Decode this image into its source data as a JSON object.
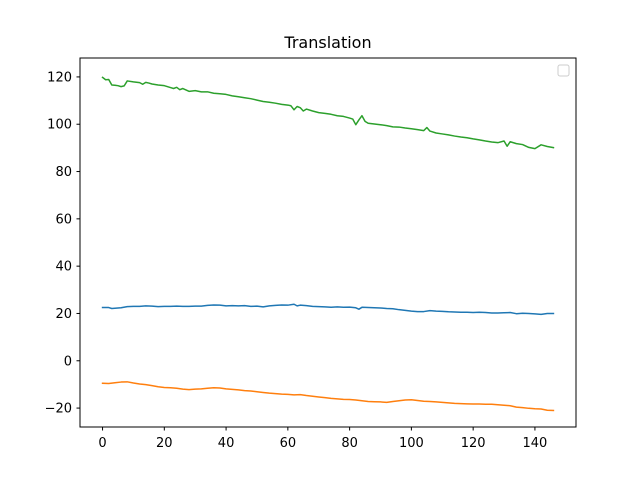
{
  "chart_data": {
    "type": "line",
    "title": "Translation",
    "xlabel": "",
    "ylabel": "",
    "xlim": [
      -7.3,
      153.3
    ],
    "ylim": [
      -28,
      128
    ],
    "xticks": [
      0,
      20,
      40,
      60,
      80,
      100,
      120,
      140
    ],
    "yticks": [
      -20,
      0,
      20,
      40,
      60,
      80,
      100,
      120
    ],
    "grid": false,
    "legend": {
      "position": "upper-right",
      "entries": []
    },
    "series": [
      {
        "color": "#1f77b4",
        "x": [
          0,
          2,
          3,
          6,
          8,
          10,
          12,
          14,
          16,
          18,
          20,
          22,
          24,
          26,
          28,
          30,
          32,
          34,
          36,
          38,
          40,
          42,
          44,
          46,
          48,
          50,
          52,
          54,
          56,
          58,
          60,
          62,
          63,
          64,
          66,
          68,
          70,
          72,
          74,
          76,
          78,
          80,
          82,
          83,
          84,
          86,
          88,
          90,
          92,
          94,
          96,
          98,
          100,
          102,
          104,
          106,
          108,
          110,
          112,
          114,
          116,
          118,
          120,
          122,
          124,
          126,
          128,
          130,
          132,
          134,
          136,
          138,
          140,
          142,
          144,
          146
        ],
        "y": [
          22.5,
          22.5,
          22.1,
          22.4,
          22.9,
          23.0,
          23.0,
          23.2,
          23.1,
          22.9,
          23.0,
          23.0,
          23.1,
          23.0,
          23.0,
          23.1,
          23.1,
          23.4,
          23.6,
          23.5,
          23.2,
          23.3,
          23.2,
          23.3,
          23.0,
          23.1,
          22.8,
          23.2,
          23.4,
          23.6,
          23.5,
          23.9,
          23.2,
          23.5,
          23.3,
          23.0,
          22.9,
          22.8,
          22.6,
          22.8,
          22.6,
          22.7,
          22.4,
          21.8,
          22.6,
          22.5,
          22.4,
          22.3,
          22.1,
          22.0,
          21.6,
          21.3,
          21.0,
          20.8,
          20.8,
          21.2,
          21.0,
          20.9,
          20.7,
          20.6,
          20.5,
          20.5,
          20.4,
          20.5,
          20.4,
          20.2,
          20.2,
          20.3,
          20.4,
          19.9,
          20.1,
          20.0,
          19.8,
          19.6,
          20.0,
          20.0
        ]
      },
      {
        "color": "#ff7f0e",
        "x": [
          0,
          2,
          4,
          6,
          8,
          10,
          12,
          14,
          16,
          18,
          20,
          22,
          24,
          26,
          28,
          30,
          32,
          34,
          36,
          38,
          40,
          42,
          44,
          46,
          48,
          50,
          52,
          54,
          56,
          58,
          60,
          62,
          64,
          66,
          68,
          70,
          72,
          74,
          76,
          78,
          80,
          82,
          84,
          86,
          88,
          90,
          92,
          94,
          96,
          98,
          100,
          102,
          104,
          106,
          108,
          110,
          112,
          114,
          116,
          118,
          120,
          122,
          124,
          126,
          128,
          130,
          132,
          134,
          136,
          138,
          140,
          142,
          144,
          146
        ],
        "y": [
          -9.5,
          -9.6,
          -9.3,
          -9.0,
          -8.9,
          -9.4,
          -9.8,
          -10.1,
          -10.5,
          -11.0,
          -11.3,
          -11.4,
          -11.6,
          -12.0,
          -12.2,
          -12.0,
          -11.9,
          -11.6,
          -11.4,
          -11.5,
          -11.9,
          -12.1,
          -12.3,
          -12.6,
          -12.8,
          -13.1,
          -13.4,
          -13.7,
          -13.9,
          -14.1,
          -14.2,
          -14.4,
          -14.3,
          -14.7,
          -15.0,
          -15.3,
          -15.6,
          -15.9,
          -16.1,
          -16.3,
          -16.4,
          -16.6,
          -16.9,
          -17.2,
          -17.3,
          -17.4,
          -17.6,
          -17.2,
          -16.9,
          -16.6,
          -16.5,
          -16.8,
          -17.1,
          -17.2,
          -17.4,
          -17.6,
          -17.8,
          -18.0,
          -18.1,
          -18.2,
          -18.3,
          -18.3,
          -18.4,
          -18.4,
          -18.6,
          -18.8,
          -19.0,
          -19.6,
          -19.8,
          -20.1,
          -20.3,
          -20.4,
          -20.9,
          -21.0
        ]
      },
      {
        "color": "#2ca02c",
        "x": [
          0,
          1,
          2,
          3,
          4,
          5,
          6,
          7,
          8,
          10,
          12,
          13,
          14,
          15,
          16,
          18,
          20,
          22,
          23,
          24,
          25,
          26,
          28,
          30,
          32,
          34,
          36,
          38,
          40,
          42,
          44,
          46,
          48,
          50,
          52,
          54,
          56,
          58,
          60,
          61,
          62,
          63,
          64,
          65,
          66,
          68,
          70,
          72,
          74,
          76,
          78,
          80,
          81,
          82,
          83,
          84,
          85,
          86,
          88,
          90,
          92,
          94,
          96,
          98,
          100,
          102,
          104,
          105,
          106,
          108,
          110,
          112,
          114,
          116,
          118,
          120,
          122,
          124,
          126,
          128,
          130,
          131,
          132,
          134,
          136,
          138,
          140,
          142,
          144,
          146
        ],
        "y": [
          119.8,
          118.8,
          118.9,
          116.6,
          116.5,
          116.3,
          115.9,
          116.2,
          118.3,
          117.9,
          117.6,
          116.9,
          117.7,
          117.4,
          117.0,
          116.6,
          116.3,
          115.5,
          115.1,
          115.6,
          114.6,
          115.1,
          113.9,
          114.2,
          113.7,
          113.7,
          113.1,
          112.9,
          112.6,
          112.0,
          111.6,
          111.2,
          110.8,
          110.2,
          109.6,
          109.3,
          108.9,
          108.4,
          108.1,
          107.8,
          106.1,
          107.5,
          107.0,
          105.6,
          106.4,
          105.6,
          104.9,
          104.6,
          104.2,
          103.6,
          103.3,
          102.6,
          102.2,
          99.8,
          101.8,
          103.6,
          101.2,
          100.4,
          100.1,
          99.8,
          99.4,
          98.9,
          98.8,
          98.4,
          98.1,
          97.7,
          97.3,
          98.6,
          97.1,
          96.3,
          95.9,
          95.5,
          95.0,
          94.6,
          94.3,
          93.8,
          93.4,
          92.9,
          92.5,
          92.2,
          92.9,
          90.7,
          92.6,
          91.8,
          91.4,
          90.2,
          89.7,
          91.3,
          90.6,
          90.1
        ]
      }
    ]
  }
}
